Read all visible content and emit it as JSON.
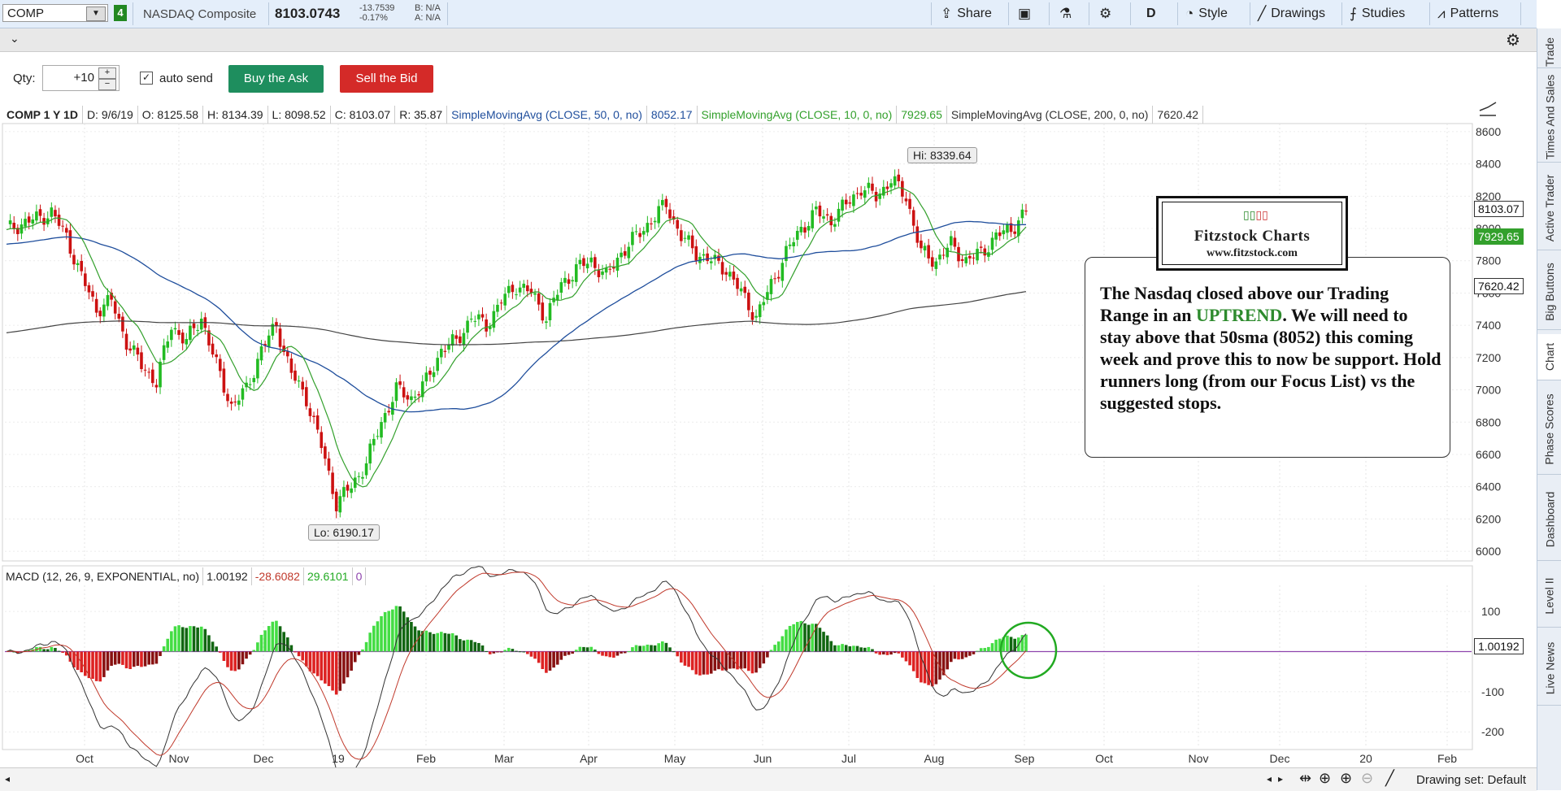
{
  "toolbar": {
    "symbol": "COMP",
    "link_num": "4",
    "name": "NASDAQ Composite",
    "last": "8103.0743",
    "change": "-13.7539",
    "change_pct": "-0.17%",
    "bid": "B: N/A",
    "ask": "A: N/A",
    "share": "Share",
    "period": "D",
    "style": "Style",
    "drawings": "Drawings",
    "studies": "Studies",
    "patterns": "Patterns"
  },
  "trade": {
    "qty_label": "Qty:",
    "qty_value": "+10",
    "auto_send": "auto send",
    "buy": "Buy the Ask",
    "sell": "Sell the Bid"
  },
  "info": {
    "title": "COMP 1 Y 1D",
    "date": "D: 9/6/19",
    "open": "O: 8125.58",
    "high": "H: 8134.39",
    "low": "L: 8098.52",
    "close": "C: 8103.07",
    "range": "R: 35.87",
    "sma50": "SimpleMovingAvg (CLOSE, 50, 0, no)",
    "sma50_val": "8052.17",
    "sma10": "SimpleMovingAvg (CLOSE, 10, 0, no)",
    "sma10_val": "7929.65",
    "sma200": "SimpleMovingAvg (CLOSE, 200, 0, no)",
    "sma200_val": "7620.42"
  },
  "macd": {
    "label": "MACD (12, 26, 9, EXPONENTIAL, no)",
    "value": "1.00192",
    "avg": "-28.6082",
    "diff": "29.6101",
    "zero": "0"
  },
  "price_tags": {
    "last": "8103.07",
    "sma10": "7929.65",
    "sma200": "7620.42",
    "macd": "1.00192"
  },
  "hilo": {
    "hi": "Hi: 8339.64",
    "lo": "Lo: 6190.17"
  },
  "annotation": {
    "before": "The Nasdaq closed above our Trading Range in an ",
    "highlight": "UPTREND",
    "after": ". We will need to stay above that 50sma (8052) this coming week and prove this to now be support.   Hold runners long (from our Focus List) vs the suggested stops."
  },
  "logo": {
    "title": "Fitzstock Charts",
    "url": "www.fitzstock.com"
  },
  "side_tabs": [
    "Trade",
    "Times And Sales",
    "Active Trader",
    "Big Buttons",
    "Chart",
    "Phase Scores",
    "Dashboard",
    "Level II",
    "Live News"
  ],
  "bottom": {
    "drawing_set": "Drawing set: Default"
  },
  "colors": {
    "up": "#22bb22",
    "down": "#cc1111",
    "sma10": "#33a02c",
    "sma50": "#1f4e9c",
    "sma200": "#444444",
    "macd_avg": "#c0392b",
    "zero_line": "#8e44ad"
  },
  "chart_data": {
    "type": "candlestick",
    "title": "COMP 1 Y 1D",
    "x_ticks": [
      "Oct",
      "Nov",
      "Dec",
      "19",
      "Feb",
      "Mar",
      "Apr",
      "May",
      "Jun",
      "Jul",
      "Aug",
      "Sep",
      "Oct",
      "Nov",
      "Dec",
      "20",
      "Feb"
    ],
    "y_ticks": [
      8600,
      8400,
      8200,
      8000,
      7800,
      7600,
      7400,
      7200,
      7000,
      6800,
      6600,
      6400,
      6200,
      6000
    ],
    "ylim": [
      5950,
      8650
    ],
    "macd_ticks": [
      100,
      -100,
      -200
    ],
    "macd_ylim": [
      -240,
      165
    ],
    "close_path": [
      [
        0,
        7990
      ],
      [
        4,
        8030
      ],
      [
        8,
        8060
      ],
      [
        12,
        8100
      ],
      [
        16,
        7950
      ],
      [
        20,
        7700
      ],
      [
        24,
        7500
      ],
      [
        28,
        7550
      ],
      [
        32,
        7300
      ],
      [
        36,
        7150
      ],
      [
        40,
        7050
      ],
      [
        44,
        7400
      ],
      [
        48,
        7300
      ],
      [
        52,
        7450
      ],
      [
        56,
        7150
      ],
      [
        60,
        6900
      ],
      [
        64,
        7000
      ],
      [
        68,
        7250
      ],
      [
        72,
        7400
      ],
      [
        76,
        7100
      ],
      [
        80,
        6950
      ],
      [
        84,
        6650
      ],
      [
        88,
        6300
      ],
      [
        92,
        6400
      ],
      [
        96,
        6550
      ],
      [
        100,
        6800
      ],
      [
        104,
        7000
      ],
      [
        108,
        6950
      ],
      [
        112,
        7050
      ],
      [
        116,
        7250
      ],
      [
        120,
        7300
      ],
      [
        124,
        7450
      ],
      [
        128,
        7400
      ],
      [
        132,
        7550
      ],
      [
        136,
        7650
      ],
      [
        140,
        7600
      ],
      [
        144,
        7450
      ],
      [
        148,
        7650
      ],
      [
        152,
        7750
      ],
      [
        156,
        7800
      ],
      [
        160,
        7700
      ],
      [
        164,
        7850
      ],
      [
        168,
        7950
      ],
      [
        172,
        8050
      ],
      [
        176,
        8150
      ],
      [
        180,
        7950
      ],
      [
        184,
        7850
      ],
      [
        188,
        7800
      ],
      [
        192,
        7750
      ],
      [
        196,
        7600
      ],
      [
        200,
        7450
      ],
      [
        204,
        7650
      ],
      [
        208,
        7850
      ],
      [
        212,
        8000
      ],
      [
        216,
        8100
      ],
      [
        220,
        8050
      ],
      [
        224,
        8150
      ],
      [
        228,
        8250
      ],
      [
        232,
        8200
      ],
      [
        236,
        8300
      ],
      [
        240,
        8200
      ],
      [
        244,
        7850
      ],
      [
        248,
        7800
      ],
      [
        252,
        7900
      ],
      [
        256,
        7800
      ],
      [
        260,
        7850
      ],
      [
        264,
        7950
      ],
      [
        268,
        8000
      ],
      [
        272,
        8100
      ]
    ],
    "series": [
      {
        "name": "SimpleMovingAvg (CLOSE, 10, 0, no)",
        "last": 7929.65
      },
      {
        "name": "SimpleMovingAvg (CLOSE, 50, 0, no)",
        "last": 8052.17
      },
      {
        "name": "SimpleMovingAvg (CLOSE, 200, 0, no)",
        "last": 7620.42
      },
      {
        "name": "MACD (12, 26, 9, EXPONENTIAL, no)",
        "last": 1.00192
      }
    ],
    "hi": 8339.64,
    "lo": 6190.17
  }
}
